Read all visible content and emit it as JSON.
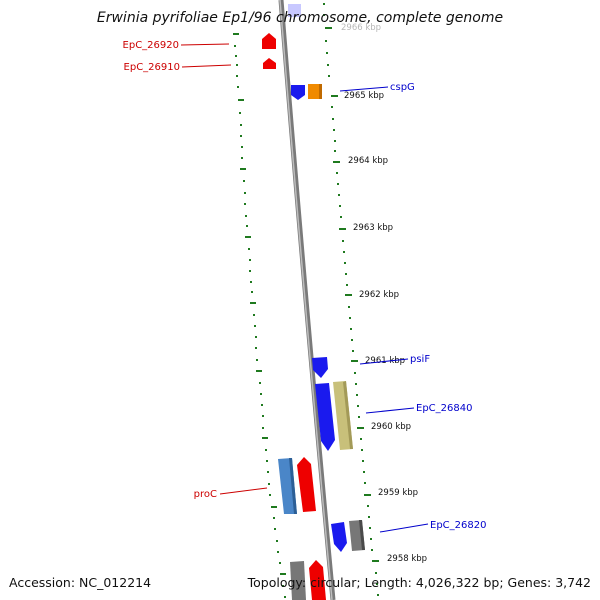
{
  "title": "Erwinia pyrifoliae Ep1/96 chromosome, complete genome",
  "footer": {
    "accession": "Accession: NC_012214",
    "topology": "Topology: circular; Length: 4,026,322 bp; Genes: 3,742"
  },
  "colors": {
    "backbone": "#8a8a8a",
    "tick": "#1f7a1f",
    "forward_label": "#cc0000",
    "reverse_label": "#0000cc"
  },
  "ruler": [
    {
      "label": "2966 kbp",
      "partial": true
    },
    {
      "label": "2965 kbp"
    },
    {
      "label": "2964 kbp"
    },
    {
      "label": "2963 kbp"
    },
    {
      "label": "2962 kbp"
    },
    {
      "label": "2961 kbp"
    },
    {
      "label": "2960 kbp"
    },
    {
      "label": "2959 kbp"
    },
    {
      "label": "2958 kbp"
    }
  ],
  "gene_labels": [
    {
      "text": "EpC_26920",
      "color": "#cc0000"
    },
    {
      "text": "EpC_26910",
      "color": "#cc0000"
    },
    {
      "text": "cspG",
      "color": "#0000cc"
    },
    {
      "text": "psiF",
      "color": "#0000cc"
    },
    {
      "text": "EpC_26840",
      "color": "#0000cc"
    },
    {
      "text": "proC",
      "color": "#cc0000"
    },
    {
      "text": "EpC_26820",
      "color": "#0000cc"
    }
  ]
}
